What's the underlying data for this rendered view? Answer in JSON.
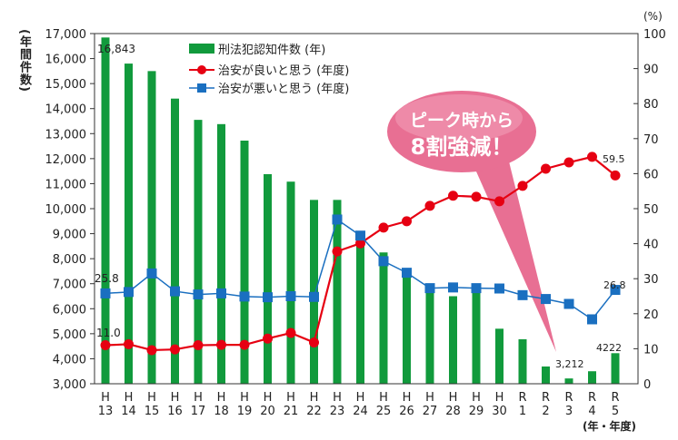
{
  "chart_data": {
    "type": "bar+line",
    "categories": [
      "H\n13",
      "H\n14",
      "H\n15",
      "H\n16",
      "H\n17",
      "H\n18",
      "H\n19",
      "H\n20",
      "H\n21",
      "H\n22",
      "H\n23",
      "H\n24",
      "H\n25",
      "H\n26",
      "H\n27",
      "H\n28",
      "H\n29",
      "H\n30",
      "R\n1",
      "R\n2",
      "R\n3",
      "R\n4",
      "R\n5"
    ],
    "ylabel_left": "(年間件数)",
    "ylabel_right": "(%)",
    "xlabel": "(年・年度)",
    "ylim_left": [
      3000,
      17000
    ],
    "yticks_left": [
      "3,000",
      "4,000",
      "5,000",
      "6,000",
      "7,000",
      "8,000",
      "9,000",
      "10,000",
      "11,000",
      "12,000",
      "13,000",
      "14,000",
      "15,000",
      "16,000",
      "17,000"
    ],
    "ylim_right": [
      0,
      100
    ],
    "yticks_right": [
      "0",
      "10",
      "20",
      "30",
      "40",
      "50",
      "60",
      "70",
      "80",
      "90",
      "100"
    ],
    "legend_position": "top-left",
    "series": [
      {
        "name": "刑法犯認知件数 (年)",
        "type": "bar",
        "axis": "left",
        "color": "#119a3c",
        "values": [
          16843,
          15800,
          15500,
          14400,
          13550,
          13380,
          12720,
          11380,
          11080,
          10350,
          10350,
          9050,
          8250,
          7550,
          6800,
          6500,
          6730,
          5200,
          4780,
          3690,
          3212,
          3500,
          4222
        ]
      },
      {
        "name": "治安が良いと思う (年度)",
        "type": "line",
        "axis": "right",
        "color": "#e60012",
        "marker": "circle",
        "values": [
          11.0,
          11.3,
          9.6,
          9.8,
          11.0,
          11.1,
          11.1,
          12.9,
          14.5,
          11.8,
          37.8,
          40.1,
          44.6,
          46.4,
          50.8,
          53.7,
          53.4,
          52.1,
          56.5,
          61.4,
          63.2,
          64.8,
          59.5
        ]
      },
      {
        "name": "治安が悪いと思う (年度)",
        "type": "line",
        "axis": "right",
        "color": "#1a6fc0",
        "marker": "square",
        "values": [
          25.8,
          26.2,
          31.5,
          26.4,
          25.5,
          25.8,
          24.9,
          24.7,
          25.0,
          24.8,
          46.9,
          42.3,
          35.0,
          31.7,
          27.3,
          27.5,
          27.3,
          27.2,
          25.3,
          24.2,
          22.8,
          18.4,
          26.8
        ]
      }
    ],
    "data_labels": {
      "bar_first": "16,843",
      "bar_r3": "3,212",
      "bar_last": "4222",
      "good_first": "11.0",
      "good_last": "59.5",
      "bad_first": "25.8",
      "bad_last": "26.8"
    },
    "annotation": {
      "line1": "ピーク時から",
      "line2": "8割強減！",
      "color": "#e5668f"
    }
  }
}
